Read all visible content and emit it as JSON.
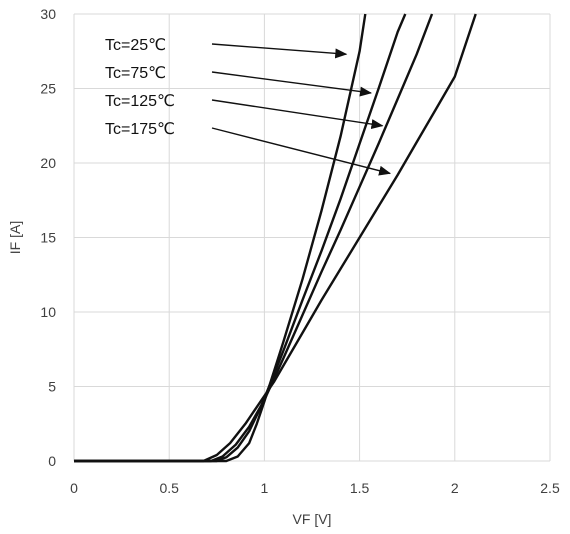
{
  "chart_data": {
    "type": "line",
    "xlabel": "VF [V]",
    "ylabel": "IF [A]",
    "xlim": [
      0,
      2.5
    ],
    "ylim": [
      0,
      30
    ],
    "xticks": [
      0,
      0.5,
      1,
      1.5,
      2,
      2.5
    ],
    "yticks": [
      0,
      5,
      10,
      15,
      20,
      25,
      30
    ],
    "grid": true,
    "legend": "annotations with arrows, upper-left",
    "series": [
      {
        "name": "Tc=25℃",
        "x": [
          0,
          0.8,
          0.86,
          0.92,
          0.96,
          1.0,
          1.05,
          1.1,
          1.2,
          1.3,
          1.4,
          1.5,
          1.53
        ],
        "y": [
          0,
          0,
          0.3,
          1.2,
          2.5,
          4.0,
          6.0,
          8.0,
          12.2,
          16.8,
          21.8,
          27.5,
          30
        ]
      },
      {
        "name": "Tc=75℃",
        "x": [
          0,
          0.75,
          0.8,
          0.86,
          0.92,
          0.98,
          1.05,
          1.1,
          1.2,
          1.3,
          1.4,
          1.5,
          1.6,
          1.7,
          1.74
        ],
        "y": [
          0,
          0,
          0.25,
          0.9,
          2.0,
          3.6,
          5.8,
          7.4,
          10.8,
          14.1,
          17.6,
          21.3,
          25.0,
          28.8,
          30
        ]
      },
      {
        "name": "Tc=125℃",
        "x": [
          0,
          0.72,
          0.78,
          0.85,
          0.92,
          1.0,
          1.05,
          1.1,
          1.2,
          1.3,
          1.4,
          1.5,
          1.6,
          1.7,
          1.8,
          1.88
        ],
        "y": [
          0,
          0,
          0.3,
          1.1,
          2.3,
          4.1,
          5.5,
          6.9,
          9.8,
          12.7,
          15.5,
          18.4,
          21.3,
          24.3,
          27.3,
          30
        ]
      },
      {
        "name": "Tc=175℃",
        "x": [
          0,
          0.68,
          0.75,
          0.82,
          0.9,
          0.98,
          1.05,
          1.1,
          1.2,
          1.3,
          1.4,
          1.5,
          1.6,
          1.7,
          1.8,
          1.9,
          2.0,
          2.11
        ],
        "y": [
          0,
          0,
          0.4,
          1.2,
          2.5,
          4.0,
          5.3,
          6.4,
          8.6,
          10.8,
          12.9,
          15.0,
          17.1,
          19.2,
          21.4,
          23.6,
          25.8,
          30
        ]
      }
    ],
    "annotations": [
      {
        "text": "Tc=25℃",
        "arrow_to": [
          1.43,
          27.3
        ]
      },
      {
        "text": "Tc=75℃",
        "arrow_to": [
          1.56,
          24.7
        ]
      },
      {
        "text": "Tc=125℃",
        "arrow_to": [
          1.62,
          22.5
        ]
      },
      {
        "text": "Tc=175℃",
        "arrow_to": [
          1.66,
          19.3
        ]
      }
    ]
  }
}
